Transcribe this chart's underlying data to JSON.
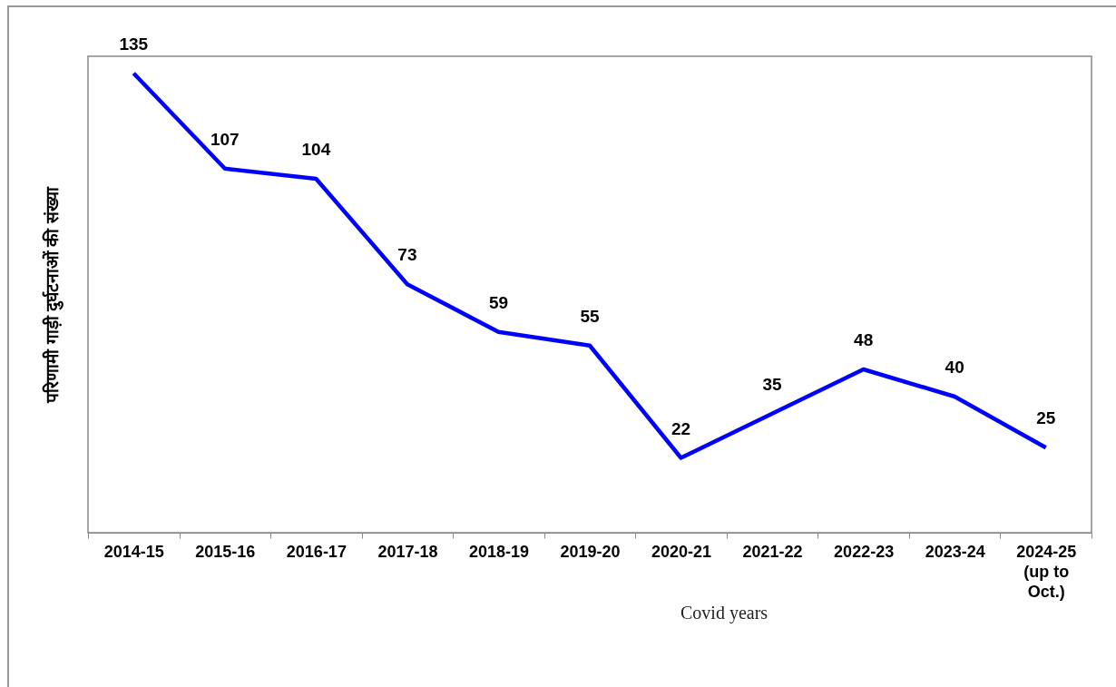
{
  "chart_data": {
    "type": "line",
    "ylabel": "परिणामी गाड़ी दुर्घटनाओं की संख्या",
    "categories": [
      "2014-15",
      "2015-16",
      "2016-17",
      "2017-18",
      "2018-19",
      "2019-20",
      "2020-21",
      "2021-22",
      "2022-23",
      "2023-24",
      "2024-25\n(up to\nOct.)"
    ],
    "series": [
      {
        "color": "#0000ff",
        "values": [
          135,
          107,
          104,
          73,
          59,
          55,
          22,
          35,
          48,
          40,
          25
        ]
      }
    ],
    "data_labels": true,
    "grid": false,
    "marker": "none",
    "line_style": "solid",
    "annotations": [
      "Covid years"
    ]
  }
}
